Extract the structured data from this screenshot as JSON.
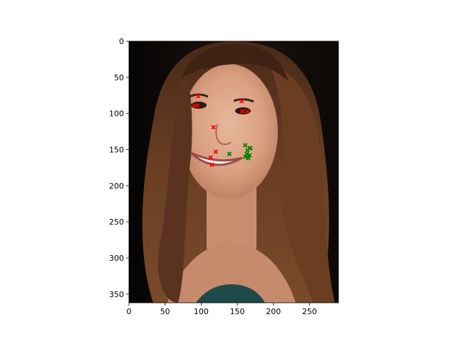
{
  "chart_data": {
    "type": "scatter",
    "title": "",
    "xlabel": "",
    "ylabel": "",
    "xlim": [
      0,
      290
    ],
    "ylim": [
      362,
      0
    ],
    "y_inverted": true,
    "x_ticks": [
      0,
      50,
      100,
      150,
      200,
      250
    ],
    "y_ticks": [
      0,
      50,
      100,
      150,
      200,
      250,
      300,
      350
    ],
    "grid": false,
    "legend": "none",
    "background": "portrait photograph of a smiling woman with long brown hair on a dark background",
    "series": [
      {
        "color": "#ff0000",
        "marker": "x",
        "points": [
          [
            96,
            76
          ],
          [
            95,
            89
          ],
          [
            91,
            89
          ],
          [
            156,
            83
          ],
          [
            157,
            97
          ],
          [
            164,
            97
          ],
          [
            117,
            119
          ],
          [
            120,
            153
          ],
          [
            113,
            161
          ],
          [
            115,
            171
          ]
        ]
      },
      {
        "color": "#008000",
        "marker": "x",
        "points": [
          [
            139,
            156
          ],
          [
            161,
            144
          ],
          [
            164,
            151
          ],
          [
            167,
            148
          ],
          [
            163,
            156
          ],
          [
            167,
            158
          ],
          [
            161,
            160
          ],
          [
            165,
            162
          ],
          [
            168,
            148
          ]
        ]
      }
    ]
  }
}
